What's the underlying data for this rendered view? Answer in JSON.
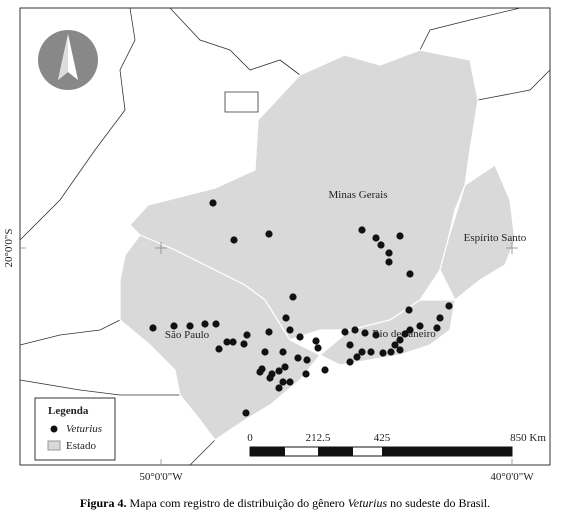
{
  "map": {
    "graticule": {
      "lat": "20°0'0\"S",
      "lon_left": "50°0'0\"W",
      "lon_right": "40°0'0\"W"
    },
    "states": {
      "mg": "Minas Gerais",
      "es": "Espírito Santo",
      "sp": "São Paulo",
      "rj": "Rio de Janeiro"
    },
    "legend": {
      "title": "Legenda",
      "records": "Veturius",
      "state": "Estado"
    },
    "scale_bar": {
      "labels": [
        "0",
        "212.5",
        "425",
        "850 Km"
      ]
    }
  },
  "caption": {
    "label": "Figura 4.",
    "text1": "Mapa com registro de distribuição do gênero",
    "genus": "Veturius",
    "text2": "no sudeste do Brasil."
  }
}
